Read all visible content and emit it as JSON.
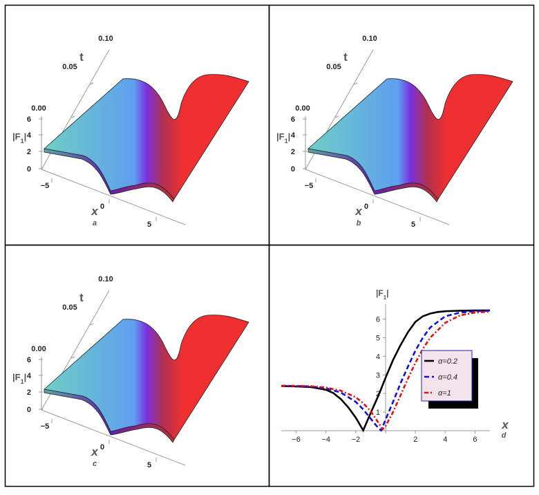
{
  "chart_data": [
    {
      "type": "surface3d",
      "panel_label": "a",
      "x_axis_label": "x",
      "t_axis_label": "t",
      "z_axis_label": "|F",
      "z_axis_sub": "1",
      "x_ticks": [
        "−5",
        "0",
        "5"
      ],
      "t_ticks": [
        "0.00",
        "0.05",
        "0.10"
      ],
      "z_ticks": [
        "0",
        "2",
        "4",
        "6"
      ],
      "left_level": 2.4,
      "right_level": 6.4,
      "colors": [
        "#6ecfc4",
        "#5f9ff0",
        "#7a30e0",
        "#b03050",
        "#f03030"
      ]
    },
    {
      "type": "surface3d",
      "panel_label": "b",
      "x_axis_label": "x",
      "t_axis_label": "t",
      "z_axis_label": "|F",
      "z_axis_sub": "1",
      "x_ticks": [
        "−5",
        "0",
        "5"
      ],
      "t_ticks": [
        "0.00",
        "0.05",
        "0.10"
      ],
      "z_ticks": [
        "0",
        "2",
        "4",
        "6"
      ],
      "left_level": 2.4,
      "right_level": 6.4,
      "colors": [
        "#6ecfc4",
        "#5f9ff0",
        "#7a30e0",
        "#b03050",
        "#f03030"
      ]
    },
    {
      "type": "surface3d",
      "panel_label": "c",
      "x_axis_label": "x",
      "t_axis_label": "t",
      "z_axis_label": "|F",
      "z_axis_sub": "1",
      "x_ticks": [
        "−5",
        "0",
        "5"
      ],
      "t_ticks": [
        "0.00",
        "0.05",
        "0.10"
      ],
      "z_ticks": [
        "0",
        "2",
        "4",
        "6"
      ],
      "left_level": 2.4,
      "right_level": 6.4,
      "colors": [
        "#6ecfc4",
        "#5f9ff0",
        "#7a30e0",
        "#b03050",
        "#f03030"
      ]
    },
    {
      "type": "line",
      "panel_label": "d",
      "xlabel": "x",
      "ylabel": "|F",
      "ylabel_sub": "1",
      "xlim": [
        -7,
        7
      ],
      "ylim": [
        0,
        6.8
      ],
      "x_ticks": [
        -6,
        -4,
        -2,
        0,
        2,
        4,
        6
      ],
      "y_ticks": [
        1,
        2,
        3,
        4,
        5,
        6
      ],
      "legend_position": "center-right",
      "series": [
        {
          "name": "α=0.2",
          "color": "#000000",
          "dash": "solid",
          "x": [
            -7,
            -6,
            -5,
            -4,
            -3.5,
            -3,
            -2.5,
            -2,
            -1.5,
            -1,
            -0.5,
            0,
            0.5,
            1,
            1.5,
            2,
            2.5,
            3,
            3.5,
            4,
            5,
            6,
            7
          ],
          "y": [
            2.4,
            2.38,
            2.34,
            2.2,
            2.02,
            1.7,
            1.25,
            0.7,
            0.02,
            0.95,
            1.85,
            2.85,
            3.8,
            4.6,
            5.3,
            5.85,
            6.15,
            6.3,
            6.38,
            6.42,
            6.45,
            6.46,
            6.47
          ]
        },
        {
          "name": "α=0.4",
          "color": "#1010e0",
          "dash": "dashed",
          "x": [
            -7,
            -6,
            -5,
            -4,
            -3,
            -2,
            -1.5,
            -1,
            -0.6,
            -0.3,
            0,
            0.5,
            1,
            1.5,
            2,
            2.5,
            3,
            4,
            5,
            6,
            7
          ],
          "y": [
            2.42,
            2.4,
            2.38,
            2.28,
            2.05,
            1.55,
            1.15,
            0.65,
            0.25,
            0.02,
            0.6,
            1.55,
            2.55,
            3.45,
            4.3,
            5.0,
            5.55,
            6.15,
            6.35,
            6.42,
            6.45
          ]
        },
        {
          "name": "α=1",
          "color": "#e01010",
          "dash": "dashdot",
          "x": [
            -7,
            -6,
            -5,
            -4,
            -3,
            -2,
            -1.5,
            -1,
            -0.5,
            -0.2,
            0,
            0.5,
            1,
            1.5,
            2,
            2.5,
            3,
            4,
            5,
            6,
            7
          ],
          "y": [
            2.42,
            2.41,
            2.39,
            2.32,
            2.15,
            1.8,
            1.48,
            1.05,
            0.45,
            0.08,
            0.25,
            1.0,
            1.9,
            2.8,
            3.65,
            4.4,
            5.0,
            5.8,
            6.2,
            6.35,
            6.4
          ]
        }
      ]
    }
  ]
}
